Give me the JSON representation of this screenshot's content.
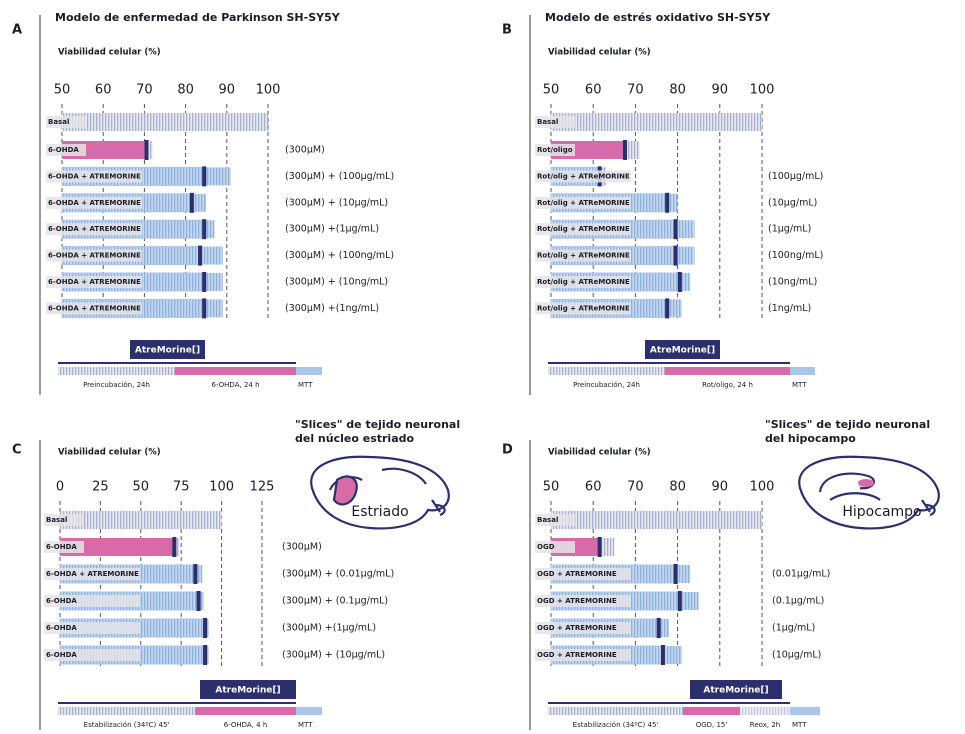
{
  "chart_data": [
    {
      "type": "bar",
      "panel": "A",
      "title": "Modelo de enfermedad de Parkinson SH-SY5Y",
      "xlabel": "Viabilidad celular (%)",
      "xlim": [
        50,
        100
      ],
      "xticks": [
        50,
        60,
        70,
        80,
        90,
        100
      ],
      "grid": true,
      "categories": [
        "Basal",
        "6-OHDA",
        "6-OHDA + ATREMORINE",
        "6-OHDA + ATREMORINE",
        "6-OHDA + ATREMORINE",
        "6-OHDA + ATREMORINE",
        "6-OHDA + ATREMORINE",
        "6-OHDA + ATREMORINE"
      ],
      "conditions": [
        null,
        "(300µM)",
        "(300µM) + (100µg/mL)",
        "(300µM) + (10µg/mL)",
        "(300µM) +(1µg/mL)",
        "(300µM) + (100ng/mL)",
        "(300µM) + (10ng/mL)",
        "(300µM) +(1ng/mL)"
      ],
      "values": [
        100,
        71,
        85,
        82,
        85,
        84,
        85,
        85
      ],
      "errors": [
        null,
        1,
        6,
        3,
        2,
        5,
        4,
        4
      ],
      "bar_colors": [
        "#c9cde2",
        "#d86aa9",
        "#a9c5e8",
        "#a9c5e8",
        "#a9c5e8",
        "#a9c5e8",
        "#a9c5e8",
        "#a9c5e8"
      ],
      "drug_label": "AtreMorine[]",
      "timeline": [
        "Preincubación, 24h",
        "6-OHDA, 24 h",
        "MTT"
      ]
    },
    {
      "type": "bar",
      "panel": "B",
      "title": "Modelo de estrés oxidativo SH-SY5Y",
      "xlabel": "Viabilidad celular (%)",
      "xlim": [
        50,
        100
      ],
      "xticks": [
        50,
        60,
        70,
        80,
        90,
        100
      ],
      "grid": true,
      "categories": [
        "Basal",
        "Rot/oligo",
        "Rot/olig + ATReMORINE",
        "Rot/olig + ATReMORINE",
        "Rot/olig + ATReMORINE",
        "Rot/olig + ATReMORINE",
        "Rot/olig + ATReMORINE",
        "Rot/olig + ATReMORINE"
      ],
      "conditions": [
        null,
        null,
        "(100µg/mL)",
        "(10µg/mL)",
        "(1µg/mL)",
        "(100ng/mL)",
        "(10ng/mL)",
        "(1ng/mL)"
      ],
      "values": [
        100,
        68,
        62,
        78,
        80,
        80,
        81,
        78
      ],
      "errors": [
        null,
        3,
        1,
        2,
        4,
        4,
        2,
        3
      ],
      "bar_colors": [
        "#c9cde2",
        "#d86aa9",
        "#a9c5e8",
        "#a9c5e8",
        "#a9c5e8",
        "#a9c5e8",
        "#a9c5e8",
        "#a9c5e8"
      ],
      "drug_label": "AtreMorine[]",
      "timeline": [
        "Preincubación, 24h",
        "Rot/oligo, 24 h",
        "MTT"
      ]
    },
    {
      "type": "bar",
      "panel": "C",
      "xlabel": "Viabilidad celular (%)",
      "xlim": [
        0,
        125
      ],
      "xticks": [
        0,
        25,
        50,
        75,
        100,
        125
      ],
      "grid": true,
      "categories": [
        "Basal",
        "6-OHDA",
        "6-OHDA + ATREMORINE",
        "6-OHDA",
        "6-OHDA",
        "6-OHDA"
      ],
      "conditions": [
        null,
        "(300µM)",
        "(300µM) + (0.01µg/mL)",
        "(300µM) + (0.1µg/mL)",
        "(300µM) +(1µg/mL)",
        "(300µM) + (10µg/mL)"
      ],
      "values": [
        100,
        72,
        85,
        87,
        91,
        91
      ],
      "errors": [
        null,
        2,
        3,
        2,
        1,
        1
      ],
      "bar_colors": [
        "#c9cde2",
        "#d86aa9",
        "#a9c5e8",
        "#a9c5e8",
        "#a9c5e8",
        "#a9c5e8"
      ],
      "image_caption": [
        "\"Slices\" de tejido neuronal",
        "del núcleo estriado"
      ],
      "image_label": "Estriado",
      "drug_label": "AtreMorine[]",
      "timeline": [
        "Estabilización (34ºC) 45'",
        "6-OHDA, 4 h",
        "MTT"
      ]
    },
    {
      "type": "bar",
      "panel": "D",
      "xlabel": "Viabilidad celular (%)",
      "xlim": [
        50,
        100
      ],
      "xticks": [
        50,
        60,
        70,
        80,
        90,
        100
      ],
      "grid": true,
      "categories": [
        "Basal",
        "OGD",
        "OGD + ATREMORINE",
        "OGD + ATREMORINE",
        "OGD + ATREMORINE",
        "OGD + ATREMORINE"
      ],
      "conditions": [
        null,
        null,
        "(0.01µg/mL)",
        "(0.1µg/mL)",
        "(1µg/mL)",
        "(10µg/mL)"
      ],
      "values": [
        100,
        62,
        80,
        81,
        76,
        77
      ],
      "errors": [
        null,
        3,
        3,
        4,
        2,
        4
      ],
      "bar_colors": [
        "#c9cde2",
        "#d86aa9",
        "#a9c5e8",
        "#a9c5e8",
        "#a9c5e8",
        "#a9c5e8"
      ],
      "image_caption": [
        "\"Slices\" de tejido neuronal",
        "del hipocampo"
      ],
      "image_label": "Hipocampo",
      "drug_label": "AtreMorine[]",
      "timeline": [
        "Estabilización (34ºC) 45'",
        "OGD, 15'",
        "Reox, 2h",
        "MTT"
      ]
    }
  ]
}
